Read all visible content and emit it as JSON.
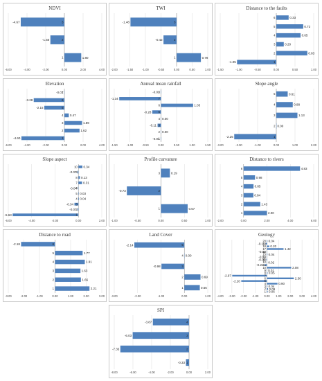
{
  "chart_data": [
    {
      "type": "bar",
      "title": "NDVI",
      "categories": [
        "1",
        "2",
        "3"
      ],
      "values": [
        1.8,
        -1.5,
        -4.67
      ],
      "ylim": [
        -6,
        4
      ],
      "ticks": [
        "-6.00",
        "-4.00",
        "-2.00",
        "0.00",
        "2.00",
        "4.00"
      ],
      "tick_values": [
        -6,
        -4,
        -2,
        0,
        2,
        4
      ],
      "value_labels": [
        "1.80",
        "-1.50",
        "-4.67"
      ],
      "color": "#4f81bd"
    },
    {
      "type": "bar",
      "title": "TWI",
      "categories": [
        "1",
        "2",
        "3"
      ],
      "values": [
        0.78,
        -0.42,
        -1.48
      ],
      "ylim": [
        -2,
        1
      ],
      "ticks": [
        "-2.00",
        "-1.50",
        "-1.00",
        "-0.50",
        "0.00",
        "0.50",
        "1.00"
      ],
      "tick_values": [
        -2,
        -1.5,
        -1,
        -0.5,
        0,
        0.5,
        1
      ],
      "value_labels": [
        "0.78",
        "-0.42",
        "-1.48"
      ],
      "color": "#4f81bd"
    },
    {
      "type": "bar",
      "title": "Distance to the faults",
      "categories": [
        "1",
        "2",
        "3",
        "4",
        "5",
        "6"
      ],
      "values": [
        -1.05,
        0.83,
        0.2,
        0.65,
        0.72,
        0.33
      ],
      "ylim": [
        -1.5,
        1
      ],
      "ticks": [
        "-1.50",
        "-1.00",
        "-0.50",
        "0.00",
        "0.50",
        "1.00"
      ],
      "tick_values": [
        -1.5,
        -1,
        -0.5,
        0,
        0.5,
        1
      ],
      "value_labels": [
        "-1.05",
        "0.83",
        "0.20",
        "0.65",
        "0.72",
        "0.33"
      ],
      "color": "#4f81bd"
    },
    {
      "type": "bar",
      "title": "Elevation",
      "categories": [
        "1",
        "2",
        "3",
        "4",
        "5",
        "6",
        "7"
      ],
      "values": [
        -4.6,
        1.62,
        1.89,
        0.47,
        -2.15,
        -3.28,
        -0.01
      ],
      "ylim": [
        -6,
        4
      ],
      "ticks": [
        "-6.00",
        "-4.00",
        "-2.00",
        "0.00",
        "2.00",
        "4.00"
      ],
      "tick_values": [
        -6,
        -4,
        -2,
        0,
        2,
        4
      ],
      "value_labels": [
        "-4.60",
        "1.62",
        "1.89",
        "0.47",
        "-2.15",
        "-3.28",
        "-0.01"
      ],
      "color": "#4f81bd"
    },
    {
      "type": "bar",
      "title": "Annual mean rainfall",
      "categories": [
        "1",
        "2",
        "3",
        "4",
        "5",
        "6",
        "7",
        "8"
      ],
      "values": [
        -0.01,
        0.0,
        -0.11,
        0.0,
        -0.28,
        1.03,
        -1.34,
        -0.01
      ],
      "ylim": [
        -1.5,
        1.5
      ],
      "ticks": [
        "-1.50",
        "-1.00",
        "-0.50",
        "0.00",
        "0.50",
        "1.00",
        "1.50"
      ],
      "tick_values": [
        -1.5,
        -1,
        -0.5,
        0,
        0.5,
        1,
        1.5
      ],
      "value_labels": [
        "-0.01",
        "0.00",
        "-0.11",
        "0.00",
        "-0.28",
        "1.03",
        "-1.34",
        "-0.01"
      ],
      "color": "#4f81bd"
    },
    {
      "type": "bar",
      "title": "Slope angle",
      "categories": [
        "1",
        "2",
        "3",
        "4",
        "5"
      ],
      "values": [
        -2.25,
        0.0,
        1.13,
        0.88,
        0.61
      ],
      "ylim": [
        -3,
        2
      ],
      "ticks": [
        "-3.00",
        "-2.00",
        "-1.00",
        "0.00",
        "1.00",
        "2.00"
      ],
      "tick_values": [
        -3,
        -2,
        -1,
        0,
        1,
        2
      ],
      "value_labels": [
        "-2.25",
        "0.00",
        "1.13",
        "0.88",
        "0.61"
      ],
      "color": "#4f81bd"
    },
    {
      "type": "bar",
      "title": "Slope aspect",
      "categories": [
        "1",
        "2",
        "3",
        "4",
        "5",
        "6",
        "7",
        "8",
        "9",
        "10"
      ],
      "values": [
        -5.63,
        -0.07,
        -0.34,
        0.04,
        0.03,
        -0.04,
        0.31,
        0.13,
        -0.07,
        0.34
      ],
      "ylim": [
        -6,
        2
      ],
      "ticks": [
        "-6.00",
        "-4.00",
        "-2.00",
        "0.00",
        "2.00"
      ],
      "tick_values": [
        -6,
        -4,
        -2,
        0,
        2
      ],
      "value_labels": [
        "-5.63",
        "-0.07",
        "-0.34",
        "0.04",
        "0.03",
        "-0.04",
        "0.31",
        "0.13",
        "-0.07",
        "0.34"
      ],
      "color": "#4f81bd"
    },
    {
      "type": "bar",
      "title": "Profile curvature",
      "categories": [
        "1",
        "2",
        "3"
      ],
      "values": [
        0.57,
        -0.73,
        0.19
      ],
      "ylim": [
        -1,
        1
      ],
      "ticks": [
        "-1.00",
        "-0.50",
        "0.00",
        "0.50",
        "1.00"
      ],
      "tick_values": [
        -1,
        -0.5,
        0,
        0.5,
        1
      ],
      "value_labels": [
        "0.57",
        "-0.73",
        "0.19"
      ],
      "color": "#4f81bd"
    },
    {
      "type": "bar",
      "title": "Distance to rivers",
      "categories": [
        "1",
        "2",
        "3",
        "4",
        "5",
        "6"
      ],
      "values": [
        2.0,
        1.43,
        0.84,
        0.85,
        0.98,
        4.83
      ],
      "ylim": [
        -2,
        6
      ],
      "ticks": [
        "-2.00",
        "0.00",
        "2.00",
        "4.00",
        "6.00"
      ],
      "tick_values": [
        -2,
        0,
        2,
        4,
        6
      ],
      "value_labels": [
        "2.00",
        "1.43",
        "0.84",
        "0.85",
        "0.98",
        "4.83"
      ],
      "color": "#4f81bd"
    },
    {
      "type": "bar",
      "title": "Distance to road",
      "categories": [
        "1",
        "2",
        "3",
        "4",
        "5",
        "6"
      ],
      "values": [
        2.21,
        1.66,
        1.63,
        1.91,
        1.77,
        -2.18
      ],
      "ylim": [
        -3,
        3
      ],
      "ticks": [
        "-3.00",
        "-2.00",
        "-1.00",
        "0.00",
        "1.00",
        "2.00",
        "3.00"
      ],
      "tick_values": [
        -3,
        -2,
        -1,
        0,
        1,
        2,
        3
      ],
      "value_labels": [
        "2.21",
        "1.66",
        "1.63",
        "1.91",
        "1.77",
        "-2.18"
      ],
      "color": "#4f81bd"
    },
    {
      "type": "bar",
      "title": "Land Cover",
      "categories": [
        "1",
        "2",
        "3",
        "4",
        "5"
      ],
      "values": [
        0.66,
        0.69,
        -0.98,
        0.0,
        -2.14
      ],
      "ylim": [
        -3,
        1
      ],
      "ticks": [
        "-3.00",
        "-2.00",
        "-1.00",
        "0.00",
        "1.00"
      ],
      "tick_values": [
        -3,
        -2,
        -1,
        0,
        1
      ],
      "value_labels": [
        "0.66",
        "0.69",
        "-0.98",
        "0.00",
        "-2.14"
      ],
      "color": "#4f81bd"
    },
    {
      "type": "bar",
      "title": "Geology",
      "categories": [
        "1",
        "2",
        "3",
        "4",
        "5",
        "6",
        "7",
        "8",
        "9",
        "10",
        "11",
        "12",
        "13",
        "14",
        "15",
        "16",
        "17",
        "18",
        "19",
        "20"
      ],
      "values": [
        0.06,
        0.09,
        0.04,
        0.9,
        -2.2,
        2.3,
        -2.97,
        0.05,
        0.01,
        2.08,
        -0.21,
        0.02,
        -0.05,
        -0.02,
        0.04,
        -0.02,
        1.42,
        0.2,
        -0.11,
        0.04
      ],
      "ylim": [
        -4,
        4
      ],
      "ticks": [
        "-4.00",
        "-3.00",
        "-2.00",
        "-1.00",
        "0.00",
        "1.00",
        "2.00",
        "3.00",
        "4.00"
      ],
      "tick_values": [
        -4,
        -3,
        -2,
        -1,
        0,
        1,
        2,
        3,
        4
      ],
      "value_labels": [
        "0.06",
        "0.09",
        "0.04",
        "0.90",
        "-2.20",
        "2.30",
        "-2.97",
        "0.05",
        "0.01",
        "2.08",
        "-0.21",
        "0.02",
        "-0.05",
        "-0.02",
        "0.04",
        "-0.02",
        "1.42",
        "0.20",
        "-0.11",
        "0.04"
      ],
      "color": "#4f81bd"
    },
    {
      "type": "bar",
      "title": "SPI",
      "categories": [
        "1",
        "2",
        "3",
        "4"
      ],
      "values": [
        -0.33,
        -7.35,
        -6.03,
        -3.87
      ],
      "ylim": [
        -8,
        2
      ],
      "ticks": [
        "-8.00",
        "-6.00",
        "-4.00",
        "-2.00",
        "0.00",
        "2.00"
      ],
      "tick_values": [
        -8,
        -6,
        -4,
        -2,
        0,
        2
      ],
      "value_labels": [
        "-0.33",
        "-7.35",
        "-6.03",
        "-3.87"
      ],
      "color": "#4f81bd"
    }
  ]
}
